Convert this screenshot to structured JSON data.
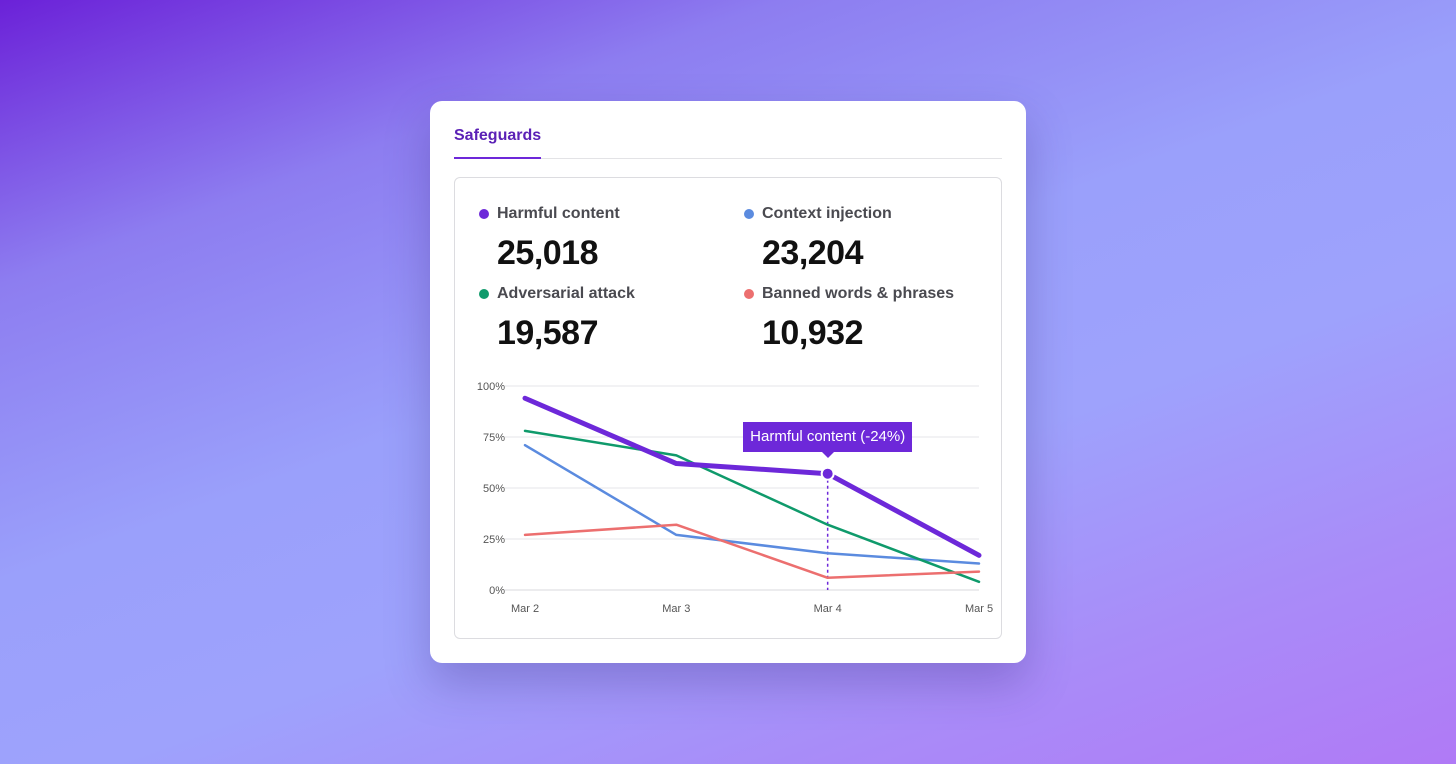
{
  "tabs": [
    {
      "label": "Safeguards",
      "active": true
    }
  ],
  "stats": [
    {
      "label": "Harmful content",
      "value": "25,018",
      "color": "#6d28d9"
    },
    {
      "label": "Context injection",
      "value": "23,204",
      "color": "#5b8bdf"
    },
    {
      "label": "Adversarial attack",
      "value": "19,587",
      "color": "#0f9a6b"
    },
    {
      "label": "Banned words & phrases",
      "value": "10,932",
      "color": "#ec6f6f"
    }
  ],
  "tooltip": {
    "text": "Harmful content (-24%)",
    "series_index": 0,
    "point_index": 2
  },
  "chart_data": {
    "type": "line",
    "categories": [
      "Mar 2",
      "Mar 3",
      "Mar 4",
      "Mar 5"
    ],
    "y_ticks": [
      "0%",
      "25%",
      "50%",
      "75%",
      "100%"
    ],
    "ylim": [
      0,
      100
    ],
    "grid": true,
    "series": [
      {
        "name": "Harmful content",
        "color": "#6d28d9",
        "values": [
          94,
          62,
          57,
          17
        ],
        "emphasis": true
      },
      {
        "name": "Context injection",
        "color": "#5b8bdf",
        "values": [
          71,
          27,
          18,
          13
        ]
      },
      {
        "name": "Adversarial attack",
        "color": "#0f9a6b",
        "values": [
          78,
          66,
          32,
          4
        ]
      },
      {
        "name": "Banned words & phrases",
        "color": "#ec6f6f",
        "values": [
          27,
          32,
          6,
          9
        ]
      }
    ]
  }
}
